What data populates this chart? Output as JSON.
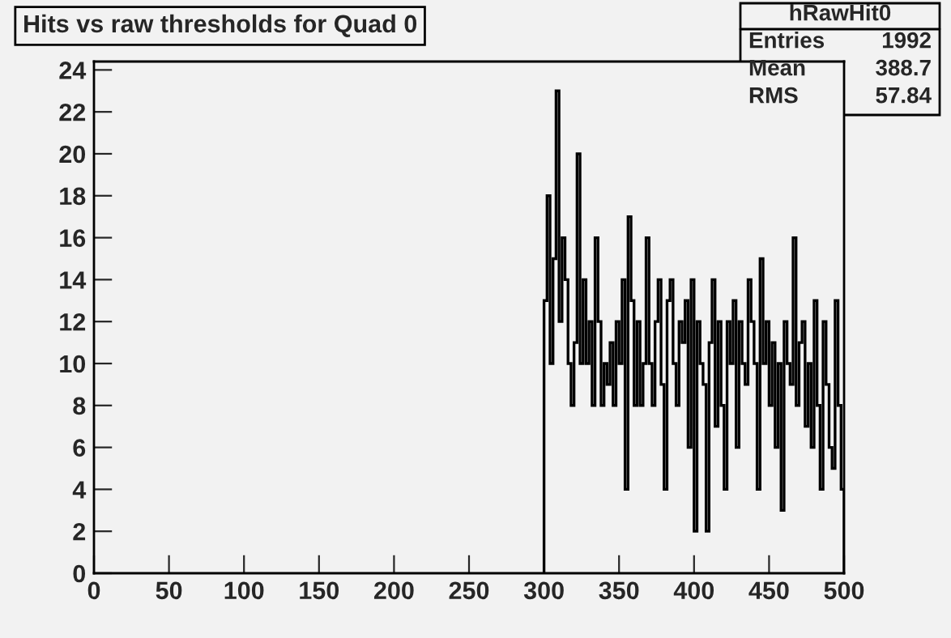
{
  "chart_data": {
    "type": "histogram",
    "title": "Hits vs raw thresholds for Quad 0",
    "bins": [
      300,
      302,
      304,
      306,
      308,
      310,
      312,
      314,
      316,
      318,
      320,
      322,
      324,
      326,
      328,
      330,
      332,
      334,
      336,
      338,
      340,
      342,
      344,
      346,
      348,
      350,
      352,
      354,
      356,
      358,
      360,
      362,
      364,
      366,
      368,
      370,
      372,
      374,
      376,
      378,
      380,
      382,
      384,
      386,
      388,
      390,
      392,
      394,
      396,
      398,
      400,
      402,
      404,
      406,
      408,
      410,
      412,
      414,
      416,
      418,
      420,
      422,
      424,
      426,
      428,
      430,
      432,
      434,
      436,
      438,
      440,
      442,
      444,
      446,
      448,
      450,
      452,
      454,
      456,
      458,
      460,
      462,
      464,
      466,
      468,
      470,
      472,
      474,
      476,
      478,
      480,
      482,
      484,
      486,
      488,
      490,
      492,
      494,
      496,
      498,
      500
    ],
    "values": [
      13,
      18,
      10,
      15,
      23,
      12,
      16,
      14,
      10,
      8,
      11,
      20,
      10,
      14,
      10,
      12,
      8,
      16,
      12,
      8,
      10,
      9,
      11,
      8,
      12,
      10,
      14,
      4,
      17,
      13,
      8,
      12,
      8,
      10,
      16,
      10,
      8,
      12,
      14,
      9,
      4,
      13,
      14,
      10,
      8,
      12,
      11,
      13,
      6,
      14,
      2,
      12,
      10,
      9,
      2,
      11,
      14,
      7,
      12,
      8,
      4,
      12,
      10,
      13,
      6,
      12,
      10,
      9,
      14,
      12,
      10,
      4,
      15,
      10,
      12,
      8,
      11,
      6,
      10,
      3,
      12,
      10,
      9,
      16,
      8,
      11,
      12,
      7,
      10,
      6,
      13,
      8,
      4,
      12,
      9,
      6,
      5,
      13,
      8,
      4
    ],
    "color": "#000000",
    "xlim": [
      0,
      500
    ],
    "xticks": [
      0,
      50,
      100,
      150,
      200,
      250,
      300,
      350,
      400,
      450,
      500
    ],
    "ylim": [
      0,
      24.4
    ],
    "yticks": [
      0,
      2,
      4,
      6,
      8,
      10,
      12,
      14,
      16,
      18,
      20,
      22,
      24
    ],
    "grid": false,
    "annotations": [
      "hRawHit0",
      "Entries",
      "1992",
      "Mean",
      "388.7",
      "RMS",
      "57.84"
    ]
  }
}
